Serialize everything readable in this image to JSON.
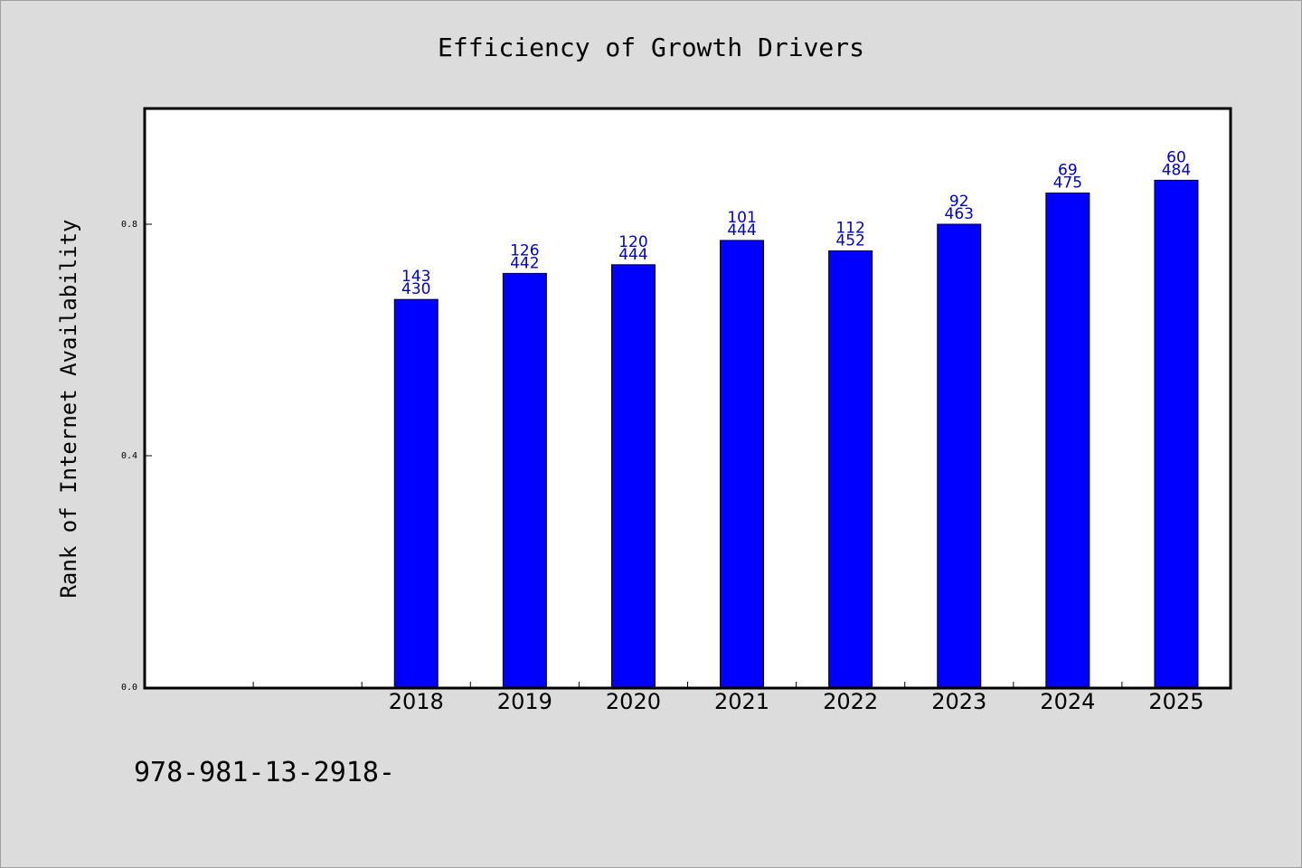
{
  "chart_data": {
    "type": "bar",
    "title": "Efficiency of Growth Drivers",
    "xlabel": "",
    "ylabel": "Rank of Internet Availability",
    "categories": [
      "",
      "",
      "2018",
      "2019",
      "2020",
      "2021",
      "2022",
      "2023",
      "2024",
      "2025"
    ],
    "values": [
      null,
      null,
      0.67,
      0.715,
      0.73,
      0.772,
      0.754,
      0.8,
      0.854,
      0.876
    ],
    "labels_top": [
      "",
      "",
      "143",
      "126",
      "120",
      "101",
      "112",
      "92",
      "69",
      "60"
    ],
    "labels_bottom": [
      "",
      "",
      "430",
      "442",
      "444",
      "444",
      "452",
      "463",
      "475",
      "484"
    ],
    "ylim": [
      0,
      1.0
    ],
    "yticks": [
      0.0,
      0.4,
      0.8
    ],
    "ytick_labels": [
      "0.0",
      "0.4",
      "0.8"
    ],
    "grid": false,
    "legend": "none",
    "colors": {
      "bar": "#0000ff",
      "label": "#0000cc",
      "background": "#dcdcdc",
      "plot_bg": "#ffffff"
    }
  },
  "footer": {
    "text": "978-981-13-2918-"
  }
}
